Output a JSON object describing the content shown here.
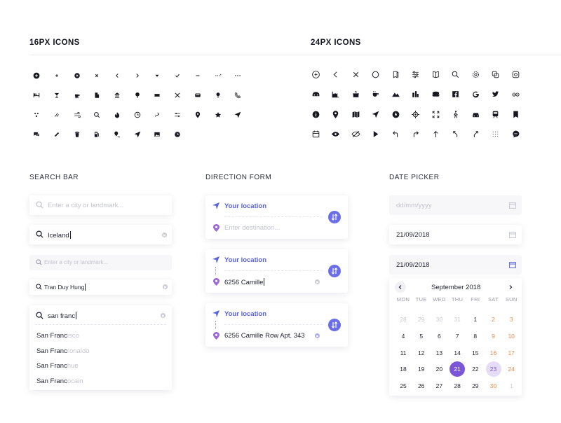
{
  "sections": {
    "icons16": "16PX ICONS",
    "icons24": "24PX ICONS",
    "search": "SEARCH BAR",
    "direction": "DIRECTION FORM",
    "date": "DATE PICKER"
  },
  "icons16": [
    [
      "plus-circle-icon",
      "plus-icon",
      "close-circle-icon",
      "close-icon",
      "chevron-left-icon",
      "chevron-right-icon",
      "caret-down-icon",
      "check-icon",
      "minus-icon",
      "dots-dashed-icon",
      "more-horizontal-icon"
    ],
    [
      "hotel-icon",
      "cocktail-icon",
      "coffee-icon",
      "building-icon",
      "museum-icon",
      "tree-icon",
      "ticket-icon",
      "restaurant-icon",
      "bus-icon",
      "bulb-icon",
      "phone-icon"
    ],
    [
      "dots-cluster-icon",
      "slash-icon",
      "wind-icon",
      "search-icon",
      "fire-icon",
      "clock-icon",
      "route-icon",
      "sliders-icon",
      "pin-icon",
      "star-icon",
      "navigation-icon"
    ],
    [
      "chat-icon",
      "pencil-icon",
      "trash-icon",
      "fuel-icon",
      "pin-route-icon",
      "navigation-icon",
      "image-icon",
      "time-icon"
    ]
  ],
  "icons24": [
    [
      "plus-circle-icon",
      "chevron-left-icon",
      "close-icon",
      "circle-icon",
      "bookmarks-icon",
      "filter-icon",
      "book-icon",
      "search-icon",
      "settings-icon",
      "copy-icon",
      "instagram-icon"
    ],
    [
      "car-ride-icon",
      "factory-icon",
      "palace-icon",
      "coffee-icon",
      "mountain-icon",
      "skyline-icon",
      "food-bowl-icon",
      "facebook-icon",
      "google-icon",
      "twitter-icon",
      "tripadvisor-icon"
    ],
    [
      "info-icon",
      "pin-icon",
      "map-icon",
      "navigation-icon",
      "compass-icon",
      "target-icon",
      "fullscreen-icon",
      "walk-icon",
      "car-icon",
      "train-icon",
      "bookmark-icon"
    ],
    [
      "calendar-icon",
      "eye-icon",
      "eye-off-icon",
      "play-icon",
      "turn-left-icon",
      "turn-right-icon",
      "arrow-up-icon",
      "fork-left-icon",
      "fork-right-icon",
      "grid-dots-icon",
      "chat-bubble-icon"
    ]
  ],
  "search": {
    "placeholder": "Enter a city or landmark...",
    "value1": "Iceland",
    "placeholder_small": "Enter a city or landmark...",
    "value2": "Tran Duy Hung",
    "value3": "san franc",
    "suggestions": [
      {
        "match": "San Franc",
        "rest": "isco"
      },
      {
        "match": "San Franc",
        "rest": "ronaldo"
      },
      {
        "match": "San Franc",
        "rest": "hue"
      },
      {
        "match": "San Franc",
        "rest": "ocain"
      }
    ]
  },
  "direction": {
    "from_label": "Your location",
    "to_placeholder": "Enter destination...",
    "to_value_2": "6256 Camille",
    "to_value_3": "6256 Camille Row Apt. 343",
    "accent": "#5a63d8"
  },
  "date": {
    "placeholder": "dd/mm/yyyy",
    "value1": "21/09/2018",
    "value2": "21/09/2018",
    "month": "September 2018",
    "weekdays": [
      "MON",
      "TUE",
      "WED",
      "THU",
      "FRI",
      "SAT",
      "SUN"
    ],
    "weeks": [
      [
        "28",
        "29",
        "30",
        "31",
        "1",
        "2",
        "3"
      ],
      [
        "4",
        "5",
        "6",
        "7",
        "8",
        "9",
        "10"
      ],
      [
        "11",
        "12",
        "13",
        "14",
        "15",
        "16",
        "17"
      ],
      [
        "18",
        "19",
        "20",
        "21",
        "22",
        "23",
        "24"
      ],
      [
        "25",
        "26",
        "27",
        "28",
        "29",
        "30",
        "1"
      ]
    ],
    "selected": "21",
    "range_end": "23",
    "accent": "#7b55d8",
    "weekend_color": "#f08a4b"
  }
}
